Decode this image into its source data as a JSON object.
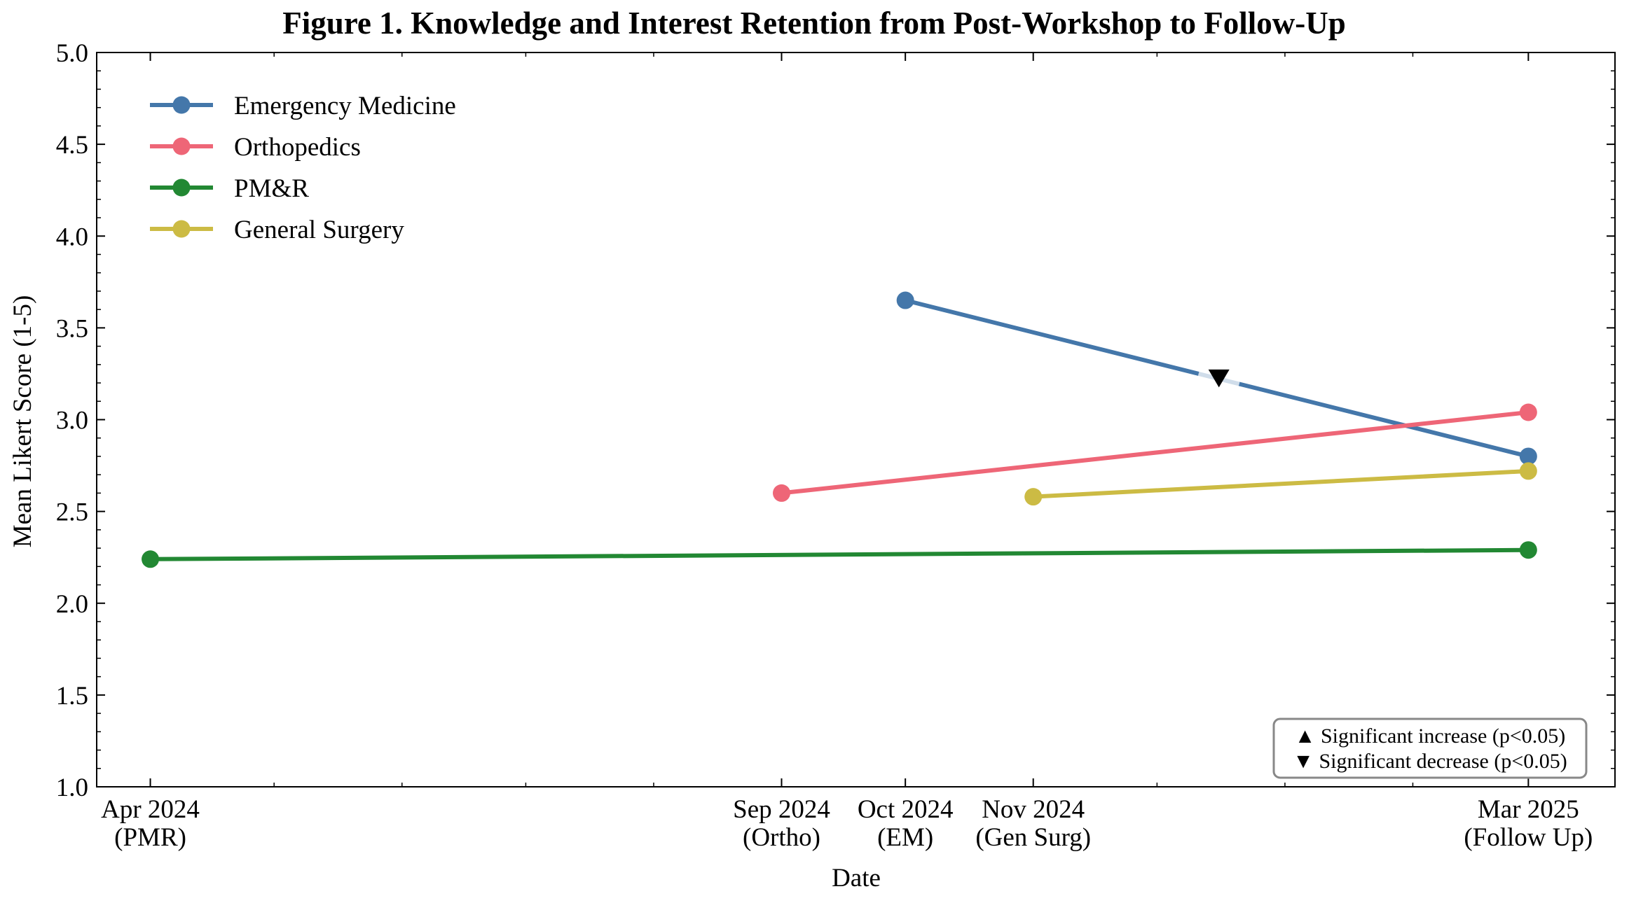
{
  "chart_data": {
    "type": "line",
    "title": "Figure 1. Knowledge and Interest Retention from Post-Workshop to Follow-Up",
    "xlabel": "Date",
    "ylabel": "Mean Likert Score (1-5)",
    "ylim": [
      1.0,
      5.0
    ],
    "xlim": [
      "2024-03-19",
      "2025-03-22"
    ],
    "yticks": [
      "1.0",
      "1.5",
      "2.0",
      "2.5",
      "3.0",
      "3.5",
      "4.0",
      "4.5",
      "5.0"
    ],
    "xticks": [
      {
        "date": "2024-04-01",
        "label": [
          "Apr 2024",
          "(PMR)"
        ]
      },
      {
        "date": "2024-09-01",
        "label": [
          "Sep 2024",
          "(Ortho)"
        ]
      },
      {
        "date": "2024-10-01",
        "label": [
          "Oct 2024",
          "(EM)"
        ]
      },
      {
        "date": "2024-11-01",
        "label": [
          "Nov 2024",
          "(Gen Surg)"
        ]
      },
      {
        "date": "2025-03-01",
        "label": [
          "Mar 2025",
          "(Follow Up)"
        ]
      }
    ],
    "grid": false,
    "legend_position": "top-left",
    "series": [
      {
        "name": "Emergency Medicine",
        "color": "#4477aa",
        "points": [
          {
            "x": "2024-10-01",
            "y": 3.65
          },
          {
            "x": "2025-03-01",
            "y": 2.8
          }
        ]
      },
      {
        "name": "Orthopedics",
        "color": "#ee6677",
        "points": [
          {
            "x": "2024-09-01",
            "y": 2.6
          },
          {
            "x": "2025-03-01",
            "y": 3.04
          }
        ]
      },
      {
        "name": "PM&R",
        "color": "#228833",
        "points": [
          {
            "x": "2024-04-01",
            "y": 2.24
          },
          {
            "x": "2025-03-01",
            "y": 2.29
          }
        ]
      },
      {
        "name": "General Surgery",
        "color": "#ccbb44",
        "points": [
          {
            "x": "2024-11-01",
            "y": 2.58
          },
          {
            "x": "2025-03-01",
            "y": 2.72
          }
        ]
      }
    ],
    "markers": [
      {
        "series": "Emergency Medicine",
        "symbol": "triangle-down",
        "x": "2024-12-16",
        "y": 3.23,
        "meaning": "decrease"
      }
    ],
    "annotation_box": {
      "position": "bottom-right",
      "lines": [
        "▲ Significant increase (p<0.05)",
        "▼ Significant decrease (p<0.05)"
      ]
    }
  }
}
